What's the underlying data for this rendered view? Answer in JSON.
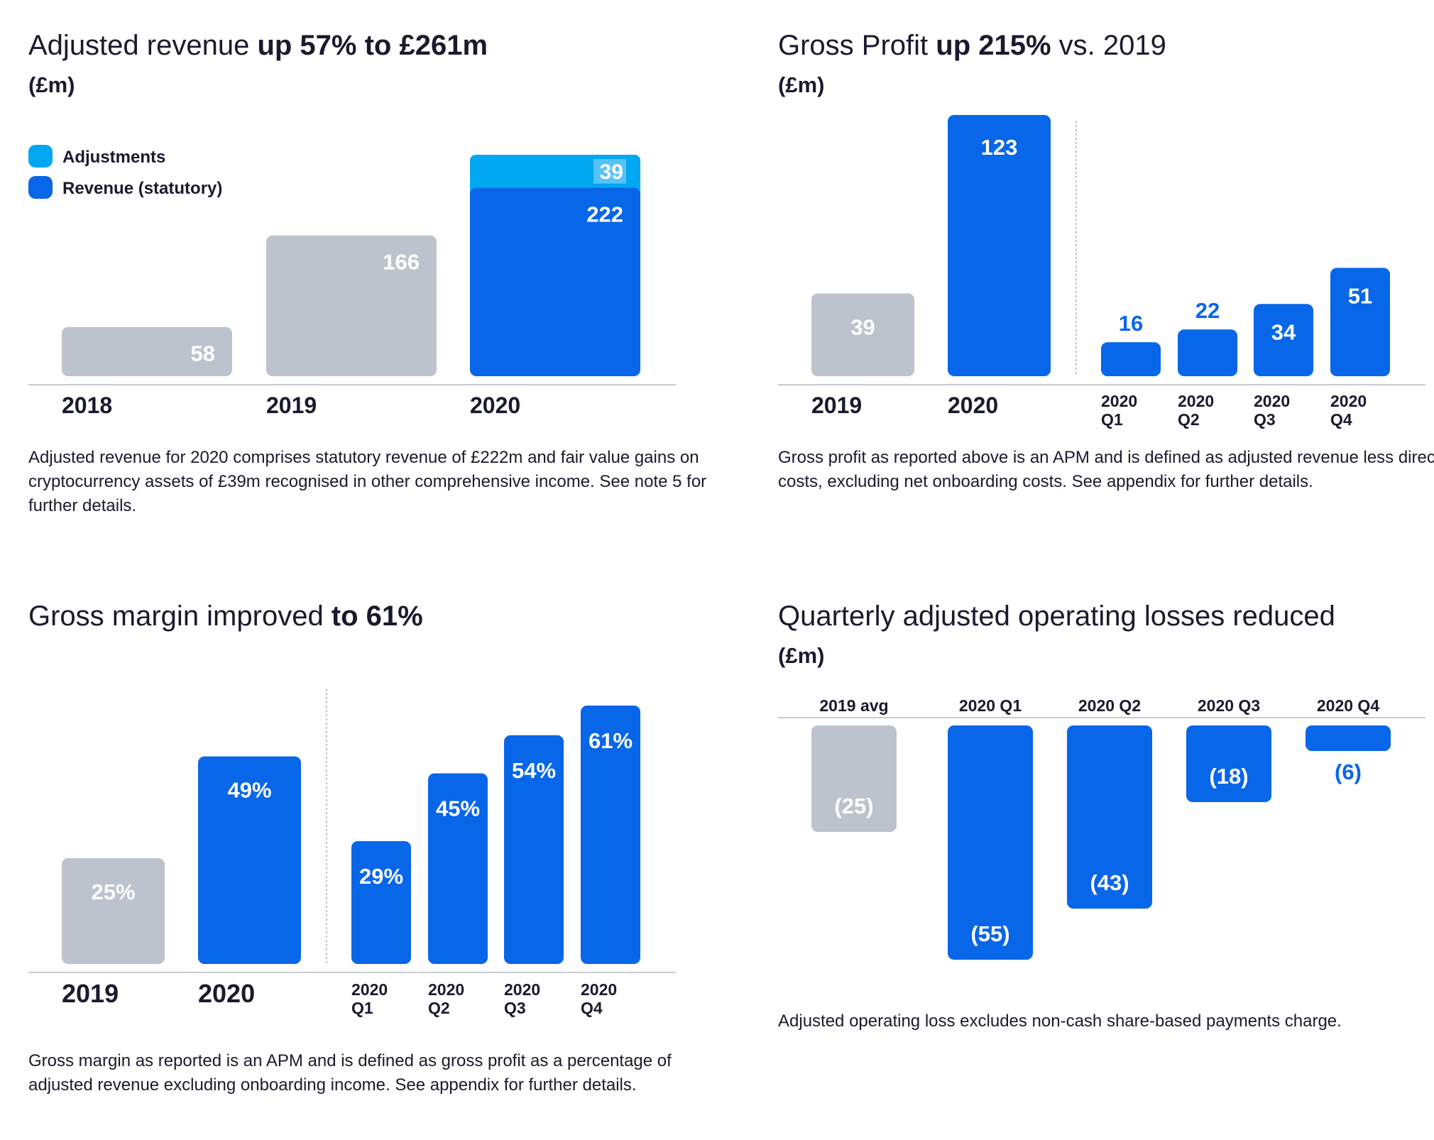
{
  "colors": {
    "blue": "#0866e9",
    "light_blue": "#02a7f2",
    "grey": "#bdc3cd",
    "dark": "#1a1a2e",
    "axis": "#c8ccd2",
    "white": "#ffffff"
  },
  "chart_data": [
    {
      "type": "bar",
      "title": "Adjusted revenue up 57% to £261m",
      "title_prefix": "Adjusted revenue ",
      "title_bold": "up 57% to £261m",
      "unit": "(£m)",
      "categories": [
        "2018",
        "2019",
        "2020"
      ],
      "series": [
        {
          "name": "Revenue (statutory)",
          "values": [
            58,
            166,
            222
          ]
        },
        {
          "name": "Adjustments",
          "values": [
            0,
            0,
            39
          ]
        }
      ],
      "value_labels": [
        "58",
        "166",
        "222"
      ],
      "adjustment_label": "39",
      "legend": [
        "Adjustments",
        "Revenue (statutory)"
      ],
      "legend_position": "top-left",
      "ylim": [
        0,
        261
      ],
      "note": "Adjusted revenue for 2020 comprises statutory revenue of £222m and fair value gains on cryptocurrency assets of £39m recognised in other comprehensive income. See note 5 for further details."
    },
    {
      "type": "bar",
      "title": "Gross Profit up 215% vs. 2019",
      "title_prefix": "Gross Profit ",
      "title_bold": "up 215%",
      "title_suffix": " vs. 2019",
      "unit": "(£m)",
      "categories": [
        "2019",
        "2020",
        "2020 Q1",
        "2020 Q2",
        "2020 Q3",
        "2020 Q4"
      ],
      "cat_lines": [
        [
          "2019"
        ],
        [
          "2020"
        ],
        [
          "2020",
          "Q1"
        ],
        [
          "2020",
          "Q2"
        ],
        [
          "2020",
          "Q3"
        ],
        [
          "2020",
          "Q4"
        ]
      ],
      "values": [
        39,
        123,
        16,
        22,
        34,
        51
      ],
      "value_labels": [
        "39",
        "123",
        "16",
        "22",
        "34",
        "51"
      ],
      "ylim": [
        0,
        123
      ],
      "note": "Gross profit as reported above is an APM and is defined as adjusted revenue less direct costs, excluding net onboarding costs. See appendix for further details."
    },
    {
      "type": "bar",
      "title": "Gross margin improved to 61%",
      "title_prefix": "Gross margin improved ",
      "title_bold": "to 61%",
      "categories": [
        "2019",
        "2020",
        "2020 Q1",
        "2020 Q2",
        "2020 Q3",
        "2020 Q4"
      ],
      "cat_lines": [
        [
          "2019"
        ],
        [
          "2020"
        ],
        [
          "2020",
          "Q1"
        ],
        [
          "2020",
          "Q2"
        ],
        [
          "2020",
          "Q3"
        ],
        [
          "2020",
          "Q4"
        ]
      ],
      "values": [
        25,
        49,
        29,
        45,
        54,
        61
      ],
      "value_labels": [
        "25%",
        "49%",
        "29%",
        "45%",
        "54%",
        "61%"
      ],
      "ylim": [
        0,
        61
      ],
      "note": "Gross margin as reported is an APM and is defined as gross profit as a percentage of adjusted revenue excluding onboarding income. See appendix for further details."
    },
    {
      "type": "bar",
      "title": "Quarterly adjusted operating losses reduced",
      "unit": "(£m)",
      "categories": [
        "2019 avg",
        "2020 Q1",
        "2020 Q2",
        "2020 Q3",
        "2020 Q4"
      ],
      "values": [
        -25,
        -55,
        -43,
        -18,
        -6
      ],
      "value_labels": [
        "(25)",
        "(55)",
        "(43)",
        "(18)",
        "(6)"
      ],
      "ylim": [
        -55,
        0
      ],
      "note": "Adjusted operating loss excludes non-cash share-based payments charge."
    }
  ]
}
